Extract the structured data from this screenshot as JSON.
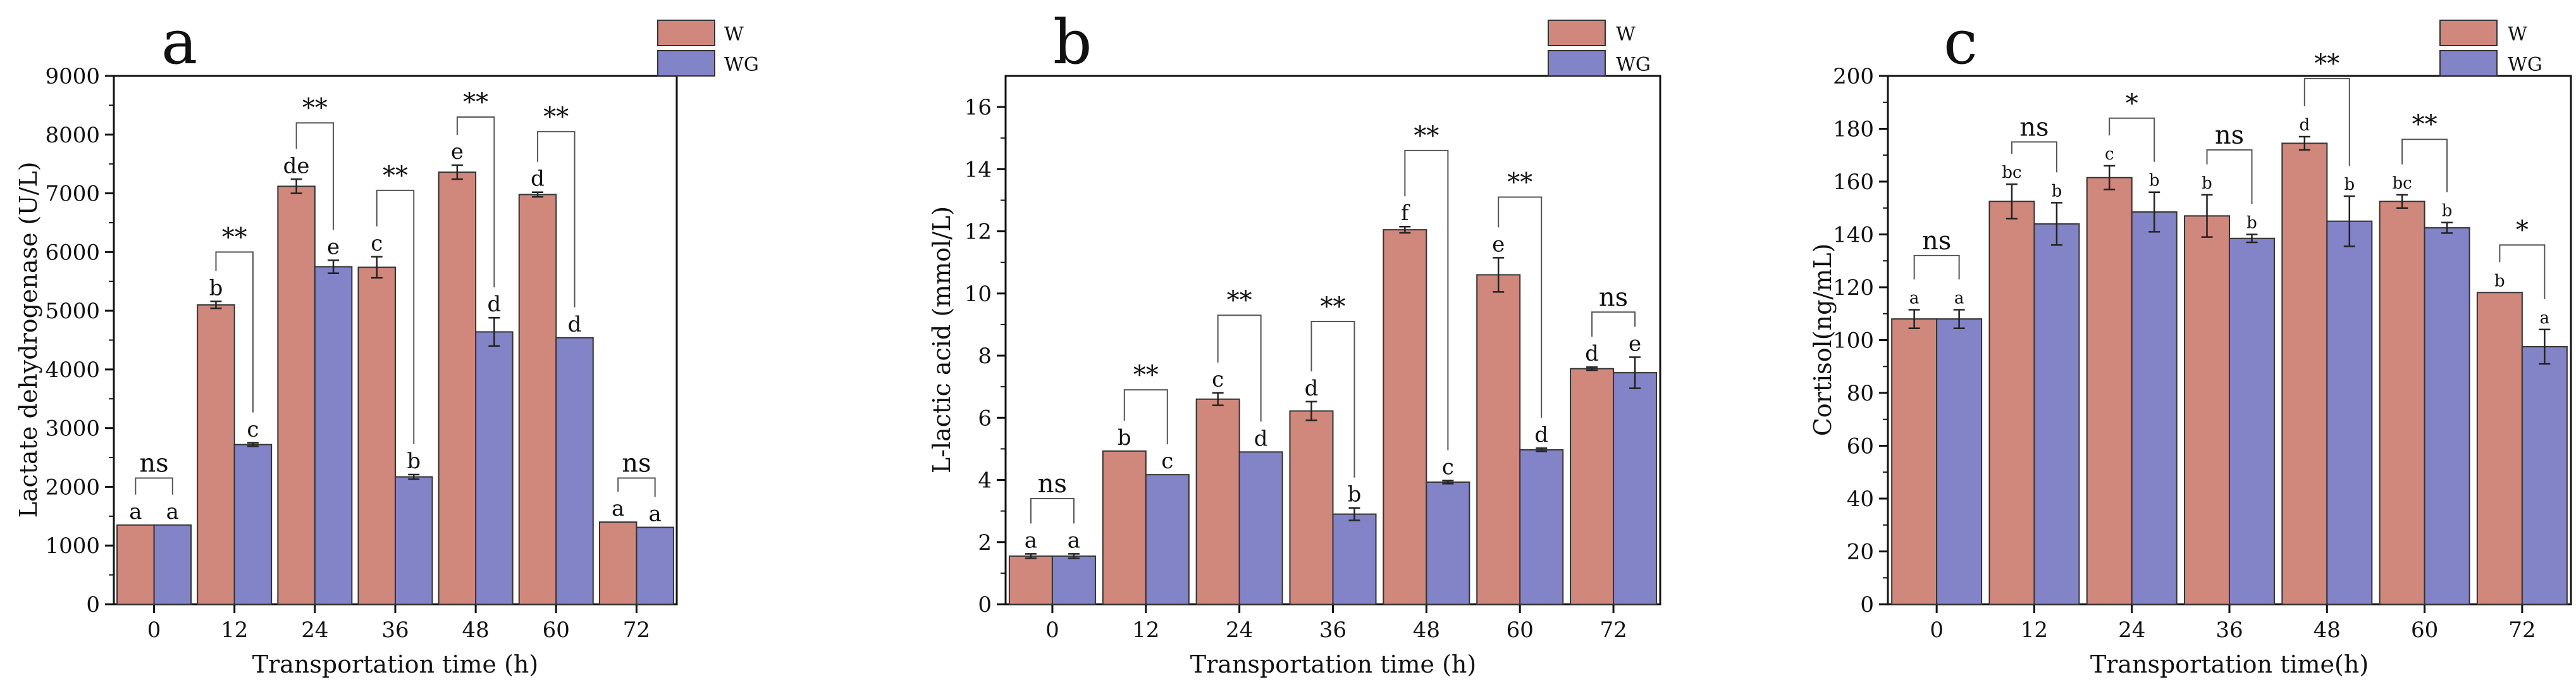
{
  "colors": {
    "W": "#d0877c",
    "WG": "#8383c8",
    "axis": "#111111",
    "bracket": "#555555"
  },
  "chart_data": [
    {
      "type": "bar",
      "panel": "a",
      "categories": [
        "0",
        "12",
        "24",
        "36",
        "48",
        "60",
        "72"
      ],
      "series": [
        {
          "name": "W",
          "values": [
            1350,
            5100,
            7120,
            5740,
            7360,
            6980,
            1400
          ],
          "errors": [
            0,
            60,
            120,
            180,
            120,
            40,
            0
          ],
          "letters": [
            "a",
            "b",
            "de",
            "c",
            "e",
            "d",
            "a"
          ]
        },
        {
          "name": "WG",
          "values": [
            1350,
            2720,
            5750,
            2170,
            4640,
            4540,
            1310
          ],
          "errors": [
            0,
            30,
            110,
            40,
            240,
            0,
            0
          ],
          "letters": [
            "a",
            "c",
            "e",
            "b",
            "d",
            "d",
            "a"
          ]
        }
      ],
      "significance": [
        "ns",
        "**",
        "**",
        "**",
        "**",
        "**",
        "ns"
      ],
      "bracket_top": [
        2150,
        6000,
        8200,
        7050,
        8300,
        8050,
        2150
      ],
      "xlabel": "Transportation time (h)",
      "ylabel": "Lactate dehydrogenase (U/L)",
      "ylim": [
        0,
        9000
      ],
      "yticks": [
        0,
        1000,
        2000,
        3000,
        4000,
        5000,
        6000,
        7000,
        8000,
        9000
      ],
      "legend": [
        "W",
        "WG"
      ],
      "legend_position": "top-right"
    },
    {
      "type": "bar",
      "panel": "b",
      "categories": [
        "0",
        "12",
        "24",
        "36",
        "48",
        "60",
        "72"
      ],
      "series": [
        {
          "name": "W",
          "values": [
            1.55,
            4.93,
            6.6,
            6.22,
            12.05,
            10.6,
            7.58
          ],
          "errors": [
            0.07,
            0,
            0.2,
            0.3,
            0.1,
            0.55,
            0.05
          ],
          "letters": [
            "a",
            "b",
            "c",
            "d",
            "f",
            "e",
            "d"
          ]
        },
        {
          "name": "WG",
          "values": [
            1.55,
            4.17,
            4.9,
            2.9,
            3.93,
            4.97,
            7.45
          ],
          "errors": [
            0.07,
            0,
            0,
            0.2,
            0.05,
            0.05,
            0.5
          ],
          "letters": [
            "a",
            "c",
            "d",
            "b",
            "c",
            "d",
            "e"
          ]
        }
      ],
      "significance": [
        "ns",
        "**",
        "**",
        "**",
        "**",
        "**",
        "ns"
      ],
      "bracket_top": [
        3.4,
        6.9,
        9.3,
        9.1,
        14.6,
        13.1,
        9.4
      ],
      "xlabel": "Transportation time (h)",
      "ylabel": "L-lactic acid (mmol/L)",
      "ylim": [
        0,
        17
      ],
      "yticks": [
        0,
        2,
        4,
        6,
        8,
        10,
        12,
        14,
        16
      ],
      "legend": [
        "W",
        "WG"
      ],
      "legend_position": "top-right"
    },
    {
      "type": "bar",
      "panel": "c",
      "categories": [
        "0",
        "12",
        "24",
        "36",
        "48",
        "60",
        "72"
      ],
      "series": [
        {
          "name": "W",
          "values": [
            108,
            152.5,
            161.5,
            147,
            174.5,
            152.5,
            118
          ],
          "errors": [
            3.5,
            6.5,
            4.5,
            8,
            2.5,
            2.5,
            0
          ],
          "letters": [
            "a",
            "bc",
            "c",
            "b",
            "d",
            "bc",
            "b"
          ]
        },
        {
          "name": "WG",
          "values": [
            108,
            144,
            148.5,
            138.5,
            145,
            142.5,
            97.5
          ],
          "errors": [
            3.5,
            8,
            7.5,
            1.5,
            9.5,
            2,
            6.5
          ],
          "letters": [
            "a",
            "b",
            "b",
            "b",
            "b",
            "b",
            "a"
          ]
        }
      ],
      "significance": [
        "ns",
        "ns",
        "*",
        "ns",
        "**",
        "**",
        "*"
      ],
      "bracket_top": [
        132,
        175,
        184,
        172,
        199,
        176,
        136
      ],
      "xlabel": "Transportation time(h)",
      "ylabel": "Cortisol(ng/mL)",
      "ylim": [
        0,
        200
      ],
      "yticks": [
        0,
        20,
        40,
        60,
        80,
        100,
        120,
        140,
        160,
        180,
        200
      ],
      "legend": [
        "W",
        "WG"
      ],
      "legend_position": "top-right"
    }
  ]
}
